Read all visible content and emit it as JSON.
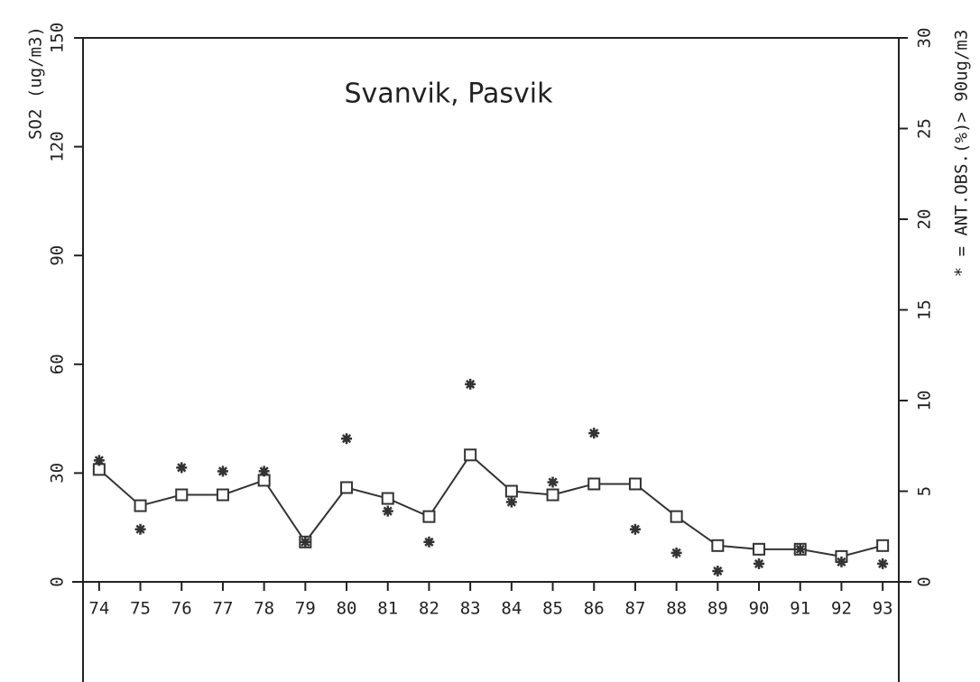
{
  "chart_data": {
    "type": "line",
    "title": "Svanvik, Pasvik",
    "ylabel": "SO2 (ug/m3)",
    "y2label": "* = ANT.OBS.(%)> 90ug/m3",
    "categories": [
      "74",
      "75",
      "76",
      "77",
      "78",
      "79",
      "80",
      "81",
      "82",
      "83",
      "84",
      "85",
      "86",
      "87",
      "88",
      "89",
      "90",
      "91",
      "92",
      "93"
    ],
    "series": [
      {
        "color": "#333333",
        "marker": "square",
        "axis": "y",
        "values": [
          31,
          21,
          24,
          24,
          28,
          11,
          26,
          23,
          18,
          35,
          25,
          24,
          27,
          27,
          18,
          10,
          9,
          9,
          7,
          10
        ]
      },
      {
        "color": "#333333",
        "marker": "star",
        "axis": "y2",
        "line": false,
        "values": [
          6.7,
          2.9,
          6.3,
          6.1,
          6.1,
          2.2,
          7.9,
          3.9,
          2.2,
          10.9,
          4.4,
          5.5,
          8.2,
          2.9,
          1.6,
          0.6,
          1.0,
          1.8,
          1.1,
          1.0
        ]
      }
    ],
    "ylim": [
      0,
      150
    ],
    "yticks": [
      0,
      30,
      60,
      90,
      120,
      150
    ],
    "y2lim": [
      0,
      30
    ],
    "y2ticks": [
      0,
      5,
      10,
      15,
      20,
      25,
      30
    ]
  }
}
